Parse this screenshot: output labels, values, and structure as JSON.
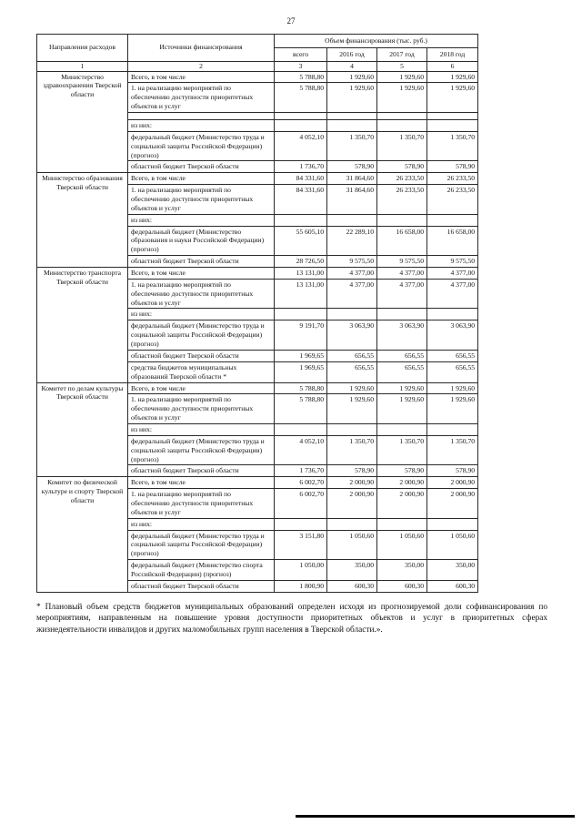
{
  "page_number": "27",
  "table": {
    "headers": {
      "directions": "Направления расходов",
      "sources": "Источники финансирования",
      "volume_group": "Объем финансирования (тыс. руб.)",
      "sub": [
        "всего",
        "2016 год",
        "2017 год",
        "2018 год"
      ],
      "col_numbers": [
        "1",
        "2",
        "3",
        "4",
        "5",
        "6"
      ]
    },
    "sections": [
      {
        "direction": "Министерство здравоохранения Тверской области",
        "rows": [
          {
            "source": "Всего, в том числе",
            "values": [
              "5 788,80",
              "1 929,60",
              "1 929,60",
              "1 929,60"
            ]
          },
          {
            "source": "1. на реализацию мероприятий по обеспечению  доступности приоритетных объектов и услуг",
            "values": [
              "5 788,80",
              "1 929,60",
              "1 929,60",
              "1 929,60"
            ]
          },
          {
            "source": "",
            "values": [
              "",
              "",
              "",
              ""
            ]
          },
          {
            "source": "из них:",
            "values": [
              "",
              "",
              "",
              ""
            ]
          },
          {
            "source": "федеральный бюджет (Министерство труда и социальной защиты Российской Федерации) (прогноз)",
            "values": [
              "4 052,10",
              "1 350,70",
              "1 350,70",
              "1 350,70"
            ]
          },
          {
            "source": "областной бюджет Тверской области",
            "values": [
              "1 736,70",
              "578,90",
              "578,90",
              "578,90"
            ]
          }
        ]
      },
      {
        "direction": "Министерство образования Тверской области",
        "rows": [
          {
            "source": "Всего, в том числе",
            "values": [
              "84 331,60",
              "31 864,60",
              "26 233,50",
              "26 233,50"
            ]
          },
          {
            "source": "1. на реализацию мероприятий по обеспечению  доступности приоритетных объектов и услуг",
            "values": [
              "84 331,60",
              "31 864,60",
              "26 233,50",
              "26 233,50"
            ]
          },
          {
            "source": "из них:",
            "values": [
              "",
              "",
              "",
              ""
            ]
          },
          {
            "source": "федеральный бюджет (Министерство образования и науки Российской Федерации) (прогноз)",
            "values": [
              "55 605,10",
              "22 289,10",
              "16 658,00",
              "16 658,00"
            ]
          },
          {
            "source": "областной бюджет Тверской области",
            "values": [
              "28 726,50",
              "9 575,50",
              "9 575,50",
              "9 575,50"
            ]
          }
        ]
      },
      {
        "direction": "Министерство транспорта Тверской области",
        "rows": [
          {
            "source": "Всего, в том числе",
            "values": [
              "13 131,00",
              "4 377,00",
              "4 377,00",
              "4 377,00"
            ]
          },
          {
            "source": "1. на реализацию мероприятий по обеспечению  доступности приоритетных объектов и услуг",
            "values": [
              "13 131,00",
              "4 377,00",
              "4 377,00",
              "4 377,00"
            ]
          },
          {
            "source": "из них:",
            "values": [
              "",
              "",
              "",
              ""
            ]
          },
          {
            "source": "федеральный бюджет (Министерство труда и социальной защиты Российской Федерации) (прогноз)",
            "values": [
              "9 191,70",
              "3 063,90",
              "3 063,90",
              "3 063,90"
            ]
          },
          {
            "source": "областной бюджет Тверской области",
            "values": [
              "1 969,65",
              "656,55",
              "656,55",
              "656,55"
            ]
          },
          {
            "source": "средства бюджетов муниципальных образований Тверской области *",
            "values": [
              "1 969,65",
              "656,55",
              "656,55",
              "656,55"
            ]
          }
        ]
      },
      {
        "direction": "Комитет по делам культуры Тверской области",
        "rows": [
          {
            "source": "Всего, в том числе",
            "values": [
              "5 788,80",
              "1 929,60",
              "1 929,60",
              "1 929,60"
            ]
          },
          {
            "source": "1. на реализацию мероприятий по обеспечению  доступности приоритетных объектов и услуг",
            "values": [
              "5 788,80",
              "1 929,60",
              "1 929,60",
              "1 929,60"
            ]
          },
          {
            "source": "из них:",
            "values": [
              "",
              "",
              "",
              ""
            ]
          },
          {
            "source": "федеральный бюджет (Министерство труда и социальной защиты Российской Федерации) (прогноз)",
            "values": [
              "4 052,10",
              "1 350,70",
              "1 350,70",
              "1 350,70"
            ]
          },
          {
            "source": "областной бюджет Тверской области",
            "values": [
              "1 736,70",
              "578,90",
              "578,90",
              "578,90"
            ]
          }
        ]
      },
      {
        "direction": "Комитет по физической культуре и спорту Тверской области",
        "rows": [
          {
            "source": "Всего, в том числе",
            "values": [
              "6 002,70",
              "2 000,90",
              "2 000,90",
              "2 000,90"
            ]
          },
          {
            "source": "1. на реализацию мероприятий по обеспечению  доступности приоритетных объектов и услуг",
            "values": [
              "6 002,70",
              "2 000,90",
              "2 000,90",
              "2 000,90"
            ]
          },
          {
            "source": "из них:",
            "values": [
              "",
              "",
              "",
              ""
            ]
          },
          {
            "source": "федеральный бюджет (Министерство труда и социальной защиты Российской Федерации) (прогноз)",
            "values": [
              "3 151,80",
              "1 050,60",
              "1 050,60",
              "1 050,60"
            ]
          },
          {
            "source": "федеральный бюджет (Министерство спорта Российской Федерации) (прогноз)",
            "values": [
              "1 050,00",
              "350,00",
              "350,00",
              "350,00"
            ]
          },
          {
            "source": "областной бюджет Тверской области",
            "values": [
              "1 800,90",
              "600,30",
              "600,30",
              "600,30"
            ]
          }
        ]
      }
    ]
  },
  "footnote": "*  Плановый объем средств бюджетов муниципальных образований определен исходя из прогнозируемой доли софинансирования по мероприятиям, направленным на повышение уровня доступности приоритетных объектов и услуг в приоритетных сферах жизнедеятельности инвалидов и других маломобильных групп населения в Тверской области.»."
}
